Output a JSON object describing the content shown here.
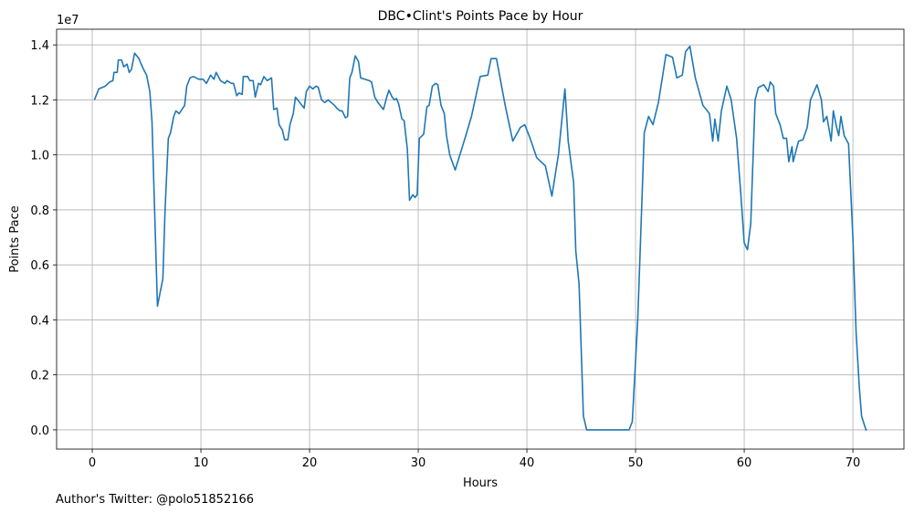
{
  "chart_data": {
    "type": "line",
    "title": "DBC•Clint's Points Pace by Hour",
    "x_label": "Hours",
    "y_label": "Points Pace",
    "y_offset_label": "1e7",
    "footnote": "Author's Twitter: @polo51852166",
    "grid": true,
    "xlim": [
      -3.28,
      74.7
    ],
    "ylim": [
      -0.07,
      1.457
    ],
    "xticks": [
      0,
      10,
      20,
      30,
      40,
      50,
      60,
      70
    ],
    "yticks": [
      {
        "value": 0,
        "label": "0.0"
      },
      0.2,
      0.4,
      0.6,
      0.8,
      {
        "value": 1,
        "label": "1.0"
      },
      1.2,
      1.4
    ],
    "x": [
      0.2,
      0.6,
      1.2,
      1.6,
      1.9,
      2.0,
      2.3,
      2.4,
      2.7,
      2.9,
      3.2,
      3.4,
      3.6,
      3.9,
      4.3,
      4.5,
      4.8,
      5.0,
      5.3,
      5.5,
      5.7,
      6.0,
      6.5,
      6.7,
      7.0,
      7.2,
      7.5,
      7.7,
      8.0,
      8.5,
      8.7,
      9.0,
      9.3,
      9.8,
      10.2,
      10.5,
      10.9,
      11.2,
      11.4,
      11.8,
      12.2,
      12.4,
      12.8,
      13.0,
      13.3,
      13.5,
      13.8,
      13.9,
      14.3,
      14.5,
      14.8,
      15.0,
      15.3,
      15.5,
      15.8,
      16.1,
      16.5,
      16.7,
      17.0,
      17.2,
      17.5,
      17.7,
      18.0,
      18.2,
      18.5,
      18.7,
      19.0,
      19.2,
      19.5,
      19.7,
      20.0,
      20.3,
      20.6,
      20.8,
      21.1,
      21.4,
      21.7,
      22.0,
      22.3,
      22.5,
      22.8,
      23.0,
      23.3,
      23.5,
      23.7,
      23.9,
      24.2,
      24.5,
      24.7,
      25.1,
      25.5,
      25.7,
      26.0,
      26.3,
      26.6,
      26.8,
      27.1,
      27.3,
      27.6,
      27.8,
      28.0,
      28.2,
      28.5,
      28.7,
      29.0,
      29.2,
      29.5,
      29.7,
      29.9,
      30.1,
      30.5,
      30.8,
      31.0,
      31.3,
      31.6,
      31.8,
      32.1,
      32.4,
      32.6,
      32.9,
      33.4,
      34.3,
      34.9,
      35.7,
      36.4,
      36.7,
      37.2,
      38.0,
      38.7,
      39.4,
      39.8,
      40.3,
      40.9,
      41.7,
      42.3,
      42.9,
      43.5,
      43.8,
      44.3,
      44.5,
      44.8,
      45.2,
      45.5,
      49.4,
      49.7,
      50.2,
      50.6,
      50.8,
      51.2,
      51.6,
      52.1,
      52.8,
      53.4,
      53.8,
      54.3,
      54.6,
      55.0,
      55.5,
      56.2,
      56.8,
      57.1,
      57.3,
      57.6,
      57.9,
      58.4,
      58.8,
      59.3,
      59.7,
      60.0,
      60.3,
      60.6,
      61.0,
      61.3,
      61.8,
      62.2,
      62.4,
      62.7,
      62.9,
      63.3,
      63.6,
      63.9,
      64.1,
      64.4,
      64.5,
      65.0,
      65.4,
      65.8,
      66.1,
      66.7,
      67.1,
      67.3,
      67.6,
      68.0,
      68.2,
      68.5,
      68.7,
      68.9,
      69.2,
      69.6,
      70.0,
      70.3,
      70.6,
      70.8,
      71.2,
      71.3
    ],
    "series": [
      {
        "name": "Points Pace",
        "color": "#1f77b4",
        "values": [
          1.2,
          1.24,
          1.25,
          1.265,
          1.27,
          1.3,
          1.3,
          1.345,
          1.345,
          1.32,
          1.33,
          1.3,
          1.31,
          1.37,
          1.35,
          1.33,
          1.305,
          1.29,
          1.23,
          1.12,
          0.85,
          0.45,
          0.55,
          0.8,
          1.06,
          1.08,
          1.14,
          1.16,
          1.15,
          1.18,
          1.25,
          1.28,
          1.285,
          1.275,
          1.275,
          1.26,
          1.29,
          1.275,
          1.3,
          1.27,
          1.26,
          1.27,
          1.26,
          1.26,
          1.215,
          1.225,
          1.22,
          1.285,
          1.285,
          1.27,
          1.27,
          1.21,
          1.26,
          1.255,
          1.285,
          1.27,
          1.28,
          1.165,
          1.17,
          1.11,
          1.09,
          1.055,
          1.055,
          1.11,
          1.15,
          1.21,
          1.195,
          1.185,
          1.17,
          1.23,
          1.25,
          1.24,
          1.25,
          1.245,
          1.2,
          1.19,
          1.2,
          1.19,
          1.18,
          1.17,
          1.16,
          1.16,
          1.135,
          1.14,
          1.28,
          1.3,
          1.36,
          1.34,
          1.28,
          1.275,
          1.27,
          1.265,
          1.21,
          1.19,
          1.175,
          1.165,
          1.21,
          1.235,
          1.21,
          1.2,
          1.205,
          1.185,
          1.13,
          1.125,
          1.02,
          0.835,
          0.855,
          0.845,
          0.855,
          1.06,
          1.075,
          1.175,
          1.18,
          1.25,
          1.26,
          1.255,
          1.18,
          1.15,
          1.07,
          1.0,
          0.945,
          1.06,
          1.14,
          1.285,
          1.29,
          1.35,
          1.35,
          1.18,
          1.05,
          1.1,
          1.11,
          1.06,
          0.99,
          0.96,
          0.85,
          1.0,
          1.24,
          1.05,
          0.9,
          0.65,
          0.53,
          0.05,
          0,
          0,
          0.03,
          0.4,
          0.85,
          1.08,
          1.14,
          1.11,
          1.19,
          1.365,
          1.355,
          1.28,
          1.29,
          1.375,
          1.395,
          1.28,
          1.18,
          1.15,
          1.05,
          1.13,
          1.05,
          1.16,
          1.25,
          1.2,
          1.06,
          0.85,
          0.68,
          0.655,
          0.75,
          1.2,
          1.245,
          1.255,
          1.23,
          1.265,
          1.25,
          1.15,
          1.11,
          1.06,
          1.06,
          0.975,
          1.03,
          0.975,
          1.05,
          1.055,
          1.1,
          1.2,
          1.255,
          1.2,
          1.12,
          1.14,
          1.05,
          1.16,
          1.1,
          1.07,
          1.14,
          1.07,
          1.04,
          0.7,
          0.35,
          0.15,
          0.05,
          0,
          0
        ]
      }
    ]
  }
}
